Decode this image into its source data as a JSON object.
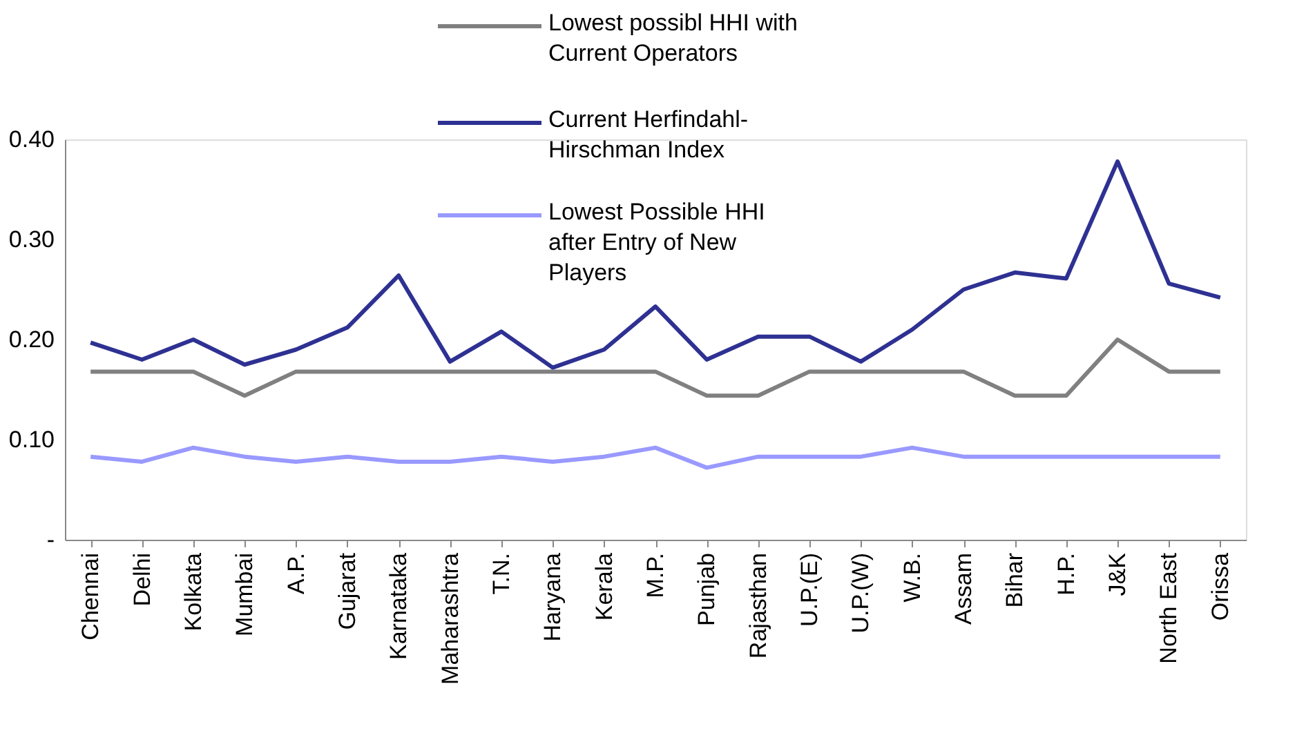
{
  "chart_data": {
    "type": "line",
    "categories": [
      "Chennai",
      "Delhi",
      "Kolkata",
      "Mumbai",
      "A.P.",
      "Gujarat",
      "Karnataka",
      "Maharashtra",
      "T.N.",
      "Haryana",
      "Kerala",
      "M.P.",
      "Punjab",
      "Rajasthan",
      "U.P.(E)",
      "U.P.(W)",
      "W.B.",
      "Assam",
      "Bihar",
      "H.P.",
      "J&K",
      "North East",
      "Orissa"
    ],
    "series": [
      {
        "name": "Lowest possibl HHI with Current Operators",
        "color": "#808080",
        "values": [
          0.168,
          0.168,
          0.168,
          0.144,
          0.168,
          0.168,
          0.168,
          0.168,
          0.168,
          0.168,
          0.168,
          0.168,
          0.144,
          0.144,
          0.168,
          0.168,
          0.168,
          0.168,
          0.144,
          0.144,
          0.2,
          0.168,
          0.168
        ]
      },
      {
        "name": "Current Herfindahl-Hirschman Index",
        "color": "#2e3192",
        "values": [
          0.197,
          0.18,
          0.2,
          0.175,
          0.19,
          0.212,
          0.264,
          0.178,
          0.208,
          0.172,
          0.19,
          0.233,
          0.18,
          0.203,
          0.203,
          0.178,
          0.21,
          0.25,
          0.267,
          0.261,
          0.378,
          0.256,
          0.242
        ]
      },
      {
        "name": "Lowest Possible HHI after Entry of New Players",
        "color": "#9999ff",
        "values": [
          0.083,
          0.078,
          0.092,
          0.083,
          0.078,
          0.083,
          0.078,
          0.078,
          0.083,
          0.078,
          0.083,
          0.092,
          0.072,
          0.083,
          0.083,
          0.083,
          0.092,
          0.083,
          0.083,
          0.083,
          0.083,
          0.083,
          0.083
        ]
      }
    ],
    "ylim": [
      0,
      0.4
    ],
    "yticks": [
      {
        "value": 0,
        "label": "-"
      },
      {
        "value": 0.1,
        "label": "0.10"
      },
      {
        "value": 0.2,
        "label": "0.20"
      },
      {
        "value": 0.3,
        "label": "0.30"
      },
      {
        "value": 0.4,
        "label": "0.40"
      }
    ],
    "grid": false,
    "legend": "top",
    "marker": "none",
    "line_style": "solid"
  }
}
